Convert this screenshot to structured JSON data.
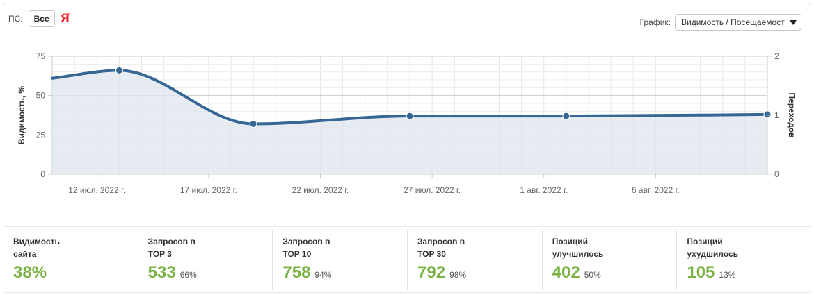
{
  "filters": {
    "ps_label": "ПС:",
    "all_label": "Все",
    "yandex_glyph": "Я",
    "graph_label": "График:",
    "graph_value": "Видимость / Посещаемость"
  },
  "chart_data": {
    "type": "line",
    "x": [
      "2022-07-10",
      "2022-07-13",
      "2022-07-19",
      "2022-07-26",
      "2022-08-02",
      "2022-08-11"
    ],
    "series": [
      {
        "values": [
          61,
          66,
          32,
          37,
          37,
          38
        ],
        "axis": "left",
        "fill": "area"
      }
    ],
    "markers_x": [
      "2022-07-13",
      "2022-07-19",
      "2022-07-26",
      "2022-08-02",
      "2022-08-11"
    ],
    "x_ticks": [
      "12 июл. 2022 г.",
      "17 июл. 2022 г.",
      "22 июл. 2022 г.",
      "27 июл. 2022 г.",
      "1 авг. 2022 г.",
      "6 авг. 2022 г."
    ],
    "y_left_ticks": [
      "0",
      "25",
      "50",
      "75"
    ],
    "y_right_ticks": [
      "0",
      "1",
      "2"
    ],
    "ylabel_left": "Видимость, %",
    "ylabel_right": "Переходов",
    "ylim_left": [
      0,
      75
    ],
    "ylim_right": [
      0,
      2
    ],
    "grid": true,
    "color": "#356694"
  },
  "stats": [
    {
      "label": "Видимость\nсайта",
      "value": "38%",
      "pct": ""
    },
    {
      "label": "Запросов в\nTOP 3",
      "value": "533",
      "pct": "66%"
    },
    {
      "label": "Запросов в\nTOP 10",
      "value": "758",
      "pct": "94%"
    },
    {
      "label": "Запросов в\nTOP 30",
      "value": "792",
      "pct": "98%"
    },
    {
      "label": "Позиций\nулучшилось",
      "value": "402",
      "pct": "50%"
    },
    {
      "label": "Позиций\nухудшилось",
      "value": "105",
      "pct": "13%"
    }
  ]
}
